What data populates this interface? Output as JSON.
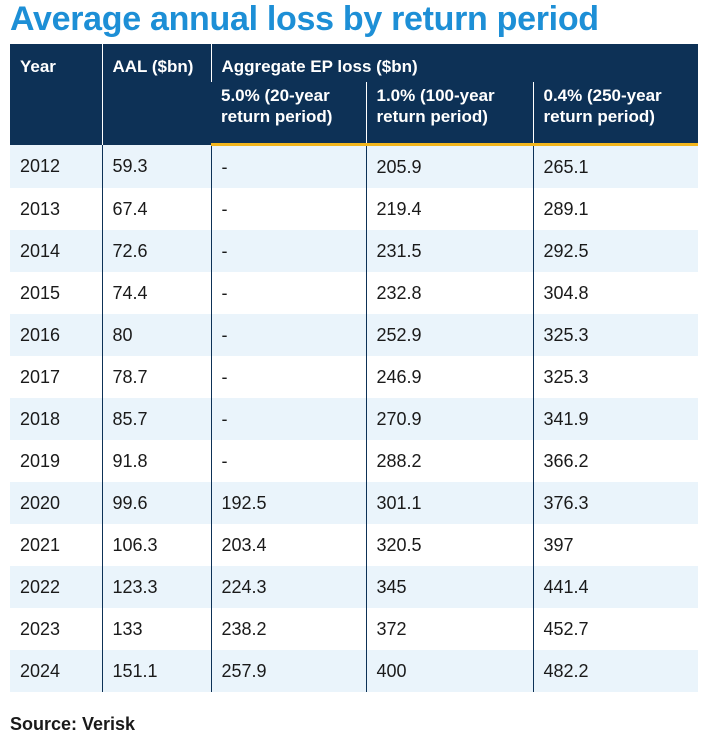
{
  "title": "Average annual loss by return period",
  "source": "Source: Verisk",
  "colors": {
    "title": "#1d8fd6",
    "header_bg": "#0d3156",
    "header_rule": "#f2b51c",
    "row_stripe": "#eaf4fb"
  },
  "chart_data": {
    "type": "table",
    "title": "Average annual loss by return period",
    "headers": {
      "year": "Year",
      "aal": "AAL ($bn)",
      "group": "Aggregate EP loss ($bn)",
      "ep_cols": [
        "5.0% (20-year return period)",
        "1.0% (100-year return period)",
        "0.4% (250-year return period)"
      ]
    },
    "rows": [
      [
        "2012",
        "59.3",
        "-",
        "205.9",
        "265.1"
      ],
      [
        "2013",
        "67.4",
        "-",
        "219.4",
        "289.1"
      ],
      [
        "2014",
        "72.6",
        "-",
        "231.5",
        "292.5"
      ],
      [
        "2015",
        "74.4",
        "-",
        "232.8",
        "304.8"
      ],
      [
        "2016",
        "80",
        "-",
        "252.9",
        "325.3"
      ],
      [
        "2017",
        "78.7",
        "-",
        "246.9",
        "325.3"
      ],
      [
        "2018",
        "85.7",
        "-",
        "270.9",
        "341.9"
      ],
      [
        "2019",
        "91.8",
        "-",
        "288.2",
        "366.2"
      ],
      [
        "2020",
        "99.6",
        "192.5",
        "301.1",
        "376.3"
      ],
      [
        "2021",
        "106.3",
        "203.4",
        "320.5",
        "397"
      ],
      [
        "2022",
        "123.3",
        "224.3",
        "345",
        "441.4"
      ],
      [
        "2023",
        "133",
        "238.2",
        "372",
        "452.7"
      ],
      [
        "2024",
        "151.1",
        "257.9",
        "400",
        "482.2"
      ]
    ]
  }
}
